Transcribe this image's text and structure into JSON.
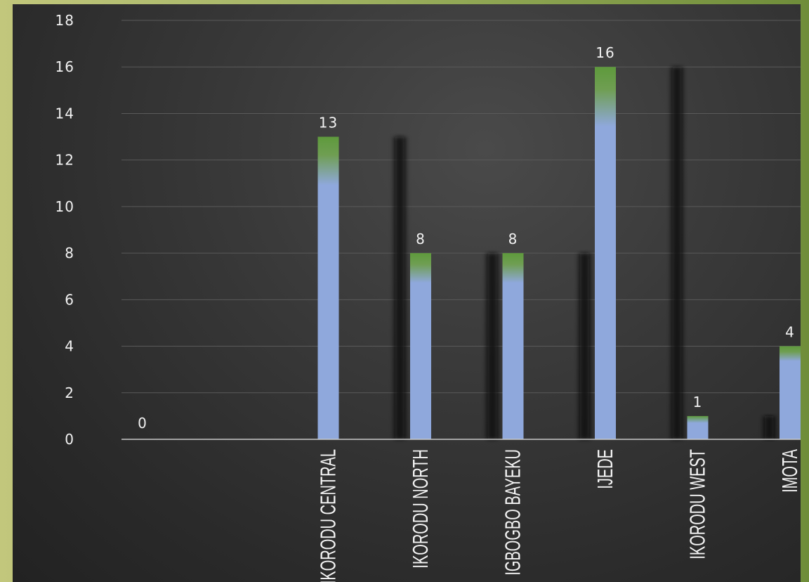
{
  "chart_data": {
    "type": "bar",
    "categories": [
      "",
      "IKORODU CENTRAL",
      "IKORODU NORTH",
      "IGBOGBO BAYEKU",
      "IJEDE",
      "IKORODU WEST",
      "IMOTA"
    ],
    "values": [
      0,
      13,
      8,
      8,
      16,
      1,
      4
    ],
    "data_labels": [
      "0",
      "13",
      "8",
      "8",
      "16",
      "1",
      "4"
    ],
    "y_ticks": [
      "0",
      "2",
      "4",
      "6",
      "8",
      "10",
      "12",
      "14",
      "16",
      "18"
    ],
    "ylim": [
      0,
      18
    ],
    "grid": true,
    "legend": "none",
    "colors": {
      "bar": "#8fa8dc",
      "bar_top": "#5e9a3c",
      "shadow": "#1c1c1c",
      "grid": "#5a5a5a",
      "axis": "#c9c9c9",
      "text": "#f2f2f2"
    }
  }
}
